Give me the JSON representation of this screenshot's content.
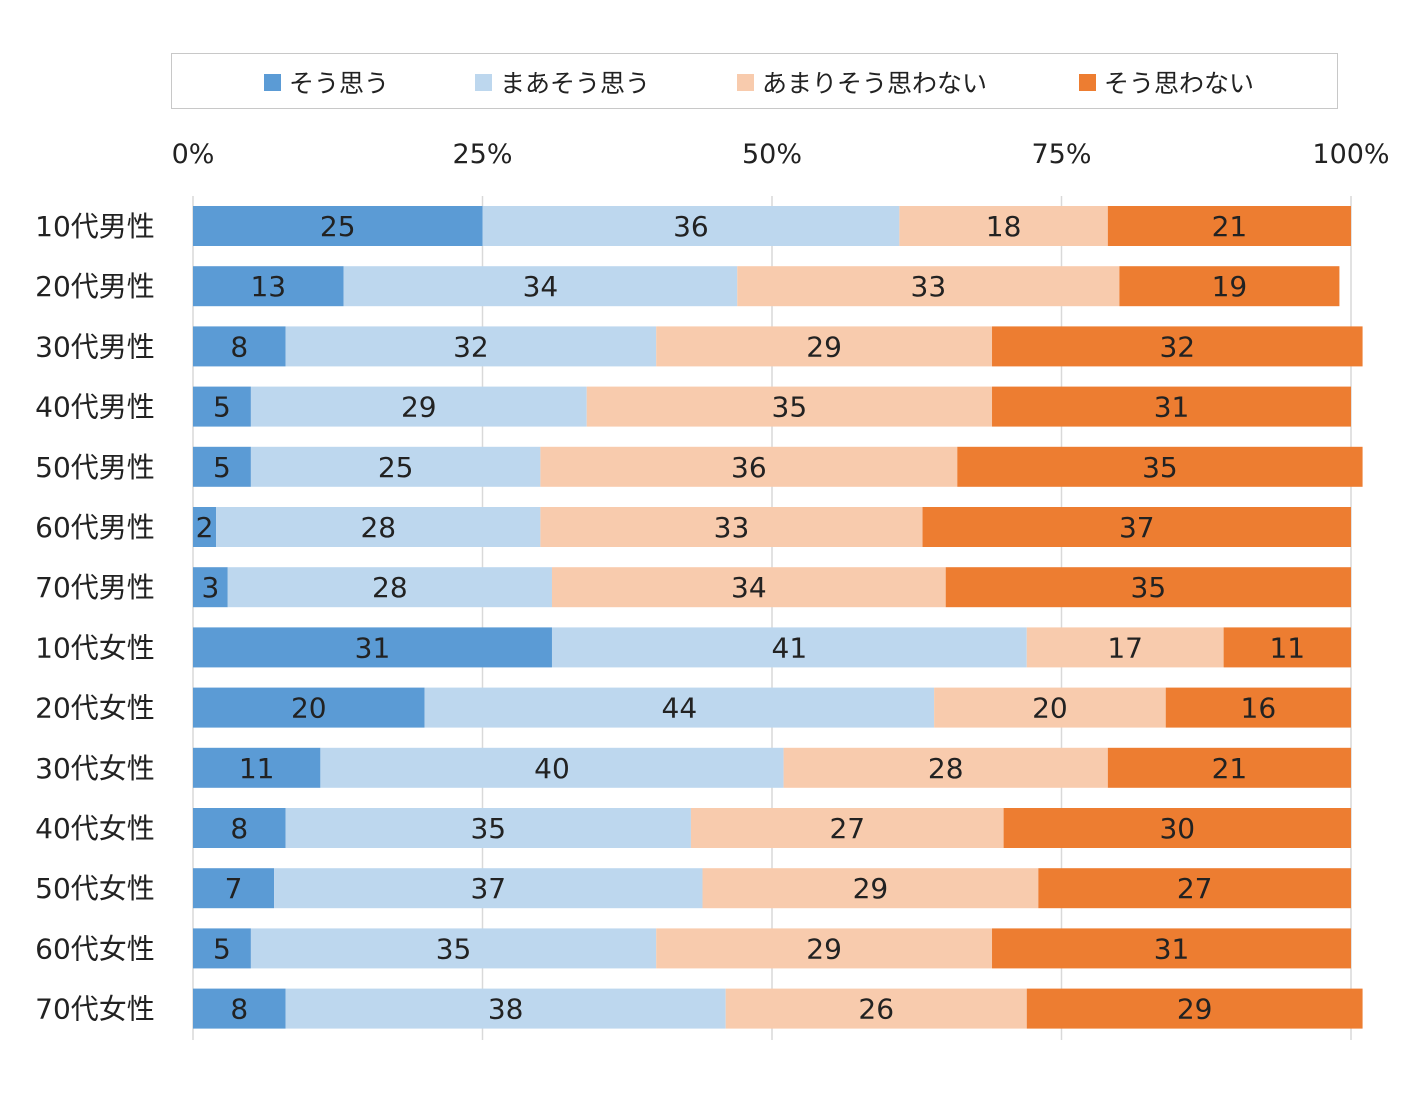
{
  "chart_data": {
    "type": "bar",
    "orientation": "horizontal",
    "stacked": true,
    "normalized": true,
    "title": "",
    "xlabel": "",
    "ylabel": "",
    "xlim": [
      0,
      100
    ],
    "x_ticks": [
      "0%",
      "25%",
      "50%",
      "75%",
      "100%"
    ],
    "grid": true,
    "legend_position": "top",
    "categories": [
      "10代男性",
      "20代男性",
      "30代男性",
      "40代男性",
      "50代男性",
      "60代男性",
      "70代男性",
      "10代女性",
      "20代女性",
      "30代女性",
      "40代女性",
      "50代女性",
      "60代女性",
      "70代女性"
    ],
    "series": [
      {
        "name": "そう思う",
        "color": "#5b9bd5",
        "values": [
          25,
          13,
          8,
          5,
          5,
          2,
          3,
          31,
          20,
          11,
          8,
          7,
          5,
          8
        ]
      },
      {
        "name": "まあそう思う",
        "color": "#bdd7ee",
        "values": [
          36,
          34,
          32,
          29,
          25,
          28,
          28,
          41,
          44,
          40,
          35,
          37,
          35,
          38
        ]
      },
      {
        "name": "あまりそう思わない",
        "color": "#f8cbad",
        "values": [
          18,
          33,
          29,
          35,
          36,
          33,
          34,
          17,
          20,
          28,
          27,
          29,
          29,
          26
        ]
      },
      {
        "name": "そう思わない",
        "color": "#ed7d31",
        "values": [
          21,
          19,
          32,
          31,
          35,
          37,
          35,
          11,
          16,
          21,
          30,
          27,
          31,
          29
        ]
      }
    ]
  }
}
